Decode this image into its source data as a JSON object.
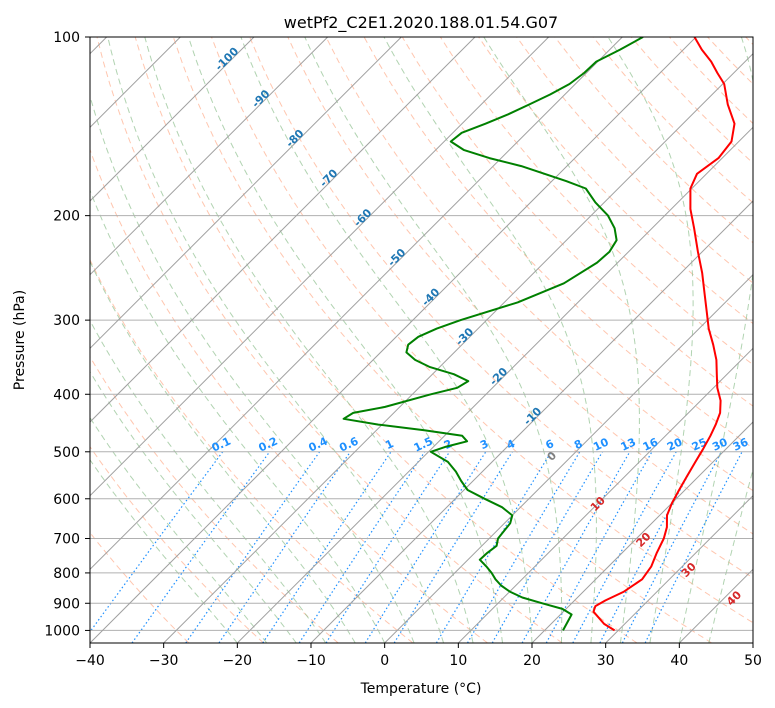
{
  "chart_data": {
    "type": "skew-t log-p",
    "title": "wetPf2_C2E1.2020.188.01.54.G07",
    "xlabel": "Temperature (°C)",
    "ylabel": "Pressure (hPa)",
    "xlim": [
      -40,
      50
    ],
    "ylim": [
      1050,
      100
    ],
    "y_scale": "log",
    "grid": true,
    "x_ticks": [
      "−40",
      "−30",
      "−20",
      "−10",
      "0",
      "10",
      "20",
      "30",
      "40",
      "50"
    ],
    "y_ticks": [
      {
        "value": 100,
        "label": "100"
      },
      {
        "value": 200,
        "label": "200"
      },
      {
        "value": 300,
        "label": "300"
      },
      {
        "value": 400,
        "label": "400"
      },
      {
        "value": 500,
        "label": "500"
      },
      {
        "value": 600,
        "label": "600"
      },
      {
        "value": 700,
        "label": "700"
      },
      {
        "value": 800,
        "label": "800"
      },
      {
        "value": 900,
        "label": "900"
      },
      {
        "value": 1000,
        "label": "1000"
      }
    ],
    "colors": {
      "temperature": "#ff0000",
      "dewpoint": "#008000",
      "isotherm_label": "#1f77b4",
      "mixing_ratio": "#1e90ff",
      "moist_adiabat_label": "#d62728",
      "dry_adiabat": "#ffa07a",
      "moist_adiabat": "#90c090",
      "isotherm": "#a0a0a0"
    },
    "series": [
      {
        "name": "Temperature",
        "color": "#ff0000",
        "points": [
          [
            1000,
            29.5
          ],
          [
            975,
            27.2
          ],
          [
            950,
            25.5
          ],
          [
            930,
            24.1
          ],
          [
            910,
            23.6
          ],
          [
            890,
            24.2
          ],
          [
            860,
            25.5
          ],
          [
            820,
            26.3
          ],
          [
            780,
            25.8
          ],
          [
            740,
            24.7
          ],
          [
            700,
            23.7
          ],
          [
            670,
            22.6
          ],
          [
            640,
            21.0
          ],
          [
            610,
            20.0
          ],
          [
            580,
            19.2
          ],
          [
            550,
            18.4
          ],
          [
            520,
            17.6
          ],
          [
            495,
            16.9
          ],
          [
            470,
            16.1
          ],
          [
            450,
            15.3
          ],
          [
            430,
            14.3
          ],
          [
            410,
            12.7
          ],
          [
            390,
            10.5
          ],
          [
            370,
            8.6
          ],
          [
            350,
            6.6
          ],
          [
            330,
            4.1
          ],
          [
            310,
            1.3
          ],
          [
            290,
            -1.3
          ],
          [
            270,
            -4.1
          ],
          [
            250,
            -7.1
          ],
          [
            230,
            -10.6
          ],
          [
            210,
            -14.3
          ],
          [
            195,
            -17.4
          ],
          [
            180,
            -20.2
          ],
          [
            170,
            -21.3
          ],
          [
            160,
            -20.5
          ],
          [
            150,
            -21.0
          ],
          [
            140,
            -23.0
          ],
          [
            130,
            -26.5
          ],
          [
            120,
            -29.8
          ],
          [
            115,
            -32.2
          ],
          [
            110,
            -34.6
          ],
          [
            105,
            -37.5
          ],
          [
            100,
            -40.2
          ]
        ]
      },
      {
        "name": "Dewpoint",
        "color": "#008000",
        "points": [
          [
            1000,
            22.5
          ],
          [
            970,
            22.0
          ],
          [
            940,
            21.5
          ],
          [
            920,
            19.5
          ],
          [
            900,
            16.0
          ],
          [
            880,
            12.5
          ],
          [
            860,
            10.0
          ],
          [
            840,
            8.0
          ],
          [
            820,
            6.4
          ],
          [
            800,
            5.0
          ],
          [
            780,
            3.4
          ],
          [
            760,
            1.6
          ],
          [
            740,
            1.7
          ],
          [
            720,
            2.0
          ],
          [
            700,
            1.2
          ],
          [
            680,
            1.0
          ],
          [
            660,
            0.8
          ],
          [
            640,
            0.0
          ],
          [
            620,
            -2.5
          ],
          [
            600,
            -6.0
          ],
          [
            580,
            -9.5
          ],
          [
            560,
            -11.6
          ],
          [
            540,
            -13.6
          ],
          [
            520,
            -16.0
          ],
          [
            500,
            -19.7
          ],
          [
            490,
            -18.3
          ],
          [
            480,
            -16.2
          ],
          [
            470,
            -17.6
          ],
          [
            460,
            -23.5
          ],
          [
            450,
            -30.5
          ],
          [
            440,
            -36.0
          ],
          [
            430,
            -35.5
          ],
          [
            420,
            -32.0
          ],
          [
            400,
            -27.5
          ],
          [
            390,
            -24.8
          ],
          [
            380,
            -24.2
          ],
          [
            370,
            -27.1
          ],
          [
            360,
            -31.3
          ],
          [
            350,
            -34.3
          ],
          [
            340,
            -36.5
          ],
          [
            330,
            -37.3
          ],
          [
            320,
            -37.0
          ],
          [
            310,
            -35.6
          ],
          [
            300,
            -33.5
          ],
          [
            280,
            -28.2
          ],
          [
            260,
            -24.5
          ],
          [
            240,
            -22.8
          ],
          [
            230,
            -22.6
          ],
          [
            220,
            -23.2
          ],
          [
            210,
            -25.1
          ],
          [
            200,
            -27.7
          ],
          [
            190,
            -31.2
          ],
          [
            180,
            -34.4
          ],
          [
            175,
            -38.0
          ],
          [
            170,
            -42.0
          ],
          [
            165,
            -46.2
          ],
          [
            160,
            -51.6
          ],
          [
            155,
            -56.2
          ],
          [
            150,
            -59.1
          ],
          [
            145,
            -58.8
          ],
          [
            140,
            -56.8
          ],
          [
            135,
            -55.0
          ],
          [
            130,
            -53.5
          ],
          [
            125,
            -52.0
          ],
          [
            120,
            -50.8
          ],
          [
            115,
            -50.3
          ],
          [
            110,
            -50.2
          ],
          [
            105,
            -48.6
          ],
          [
            100,
            -47.2
          ]
        ]
      }
    ],
    "isotherm_labels": [
      "-100",
      "-90",
      "-80",
      "-70",
      "-60",
      "-50",
      "-40",
      "-30",
      "-20",
      "-10"
    ],
    "mixing_ratio_labels": [
      "0.1",
      "0.2",
      "0.4",
      "0.6",
      "1",
      "1.5",
      "2",
      "3",
      "4",
      "6",
      "8",
      "10",
      "13",
      "16",
      "20",
      "25",
      "30",
      "36"
    ],
    "moist_adiabat_labels": [
      "0",
      "10",
      "20",
      "30",
      "40"
    ]
  }
}
